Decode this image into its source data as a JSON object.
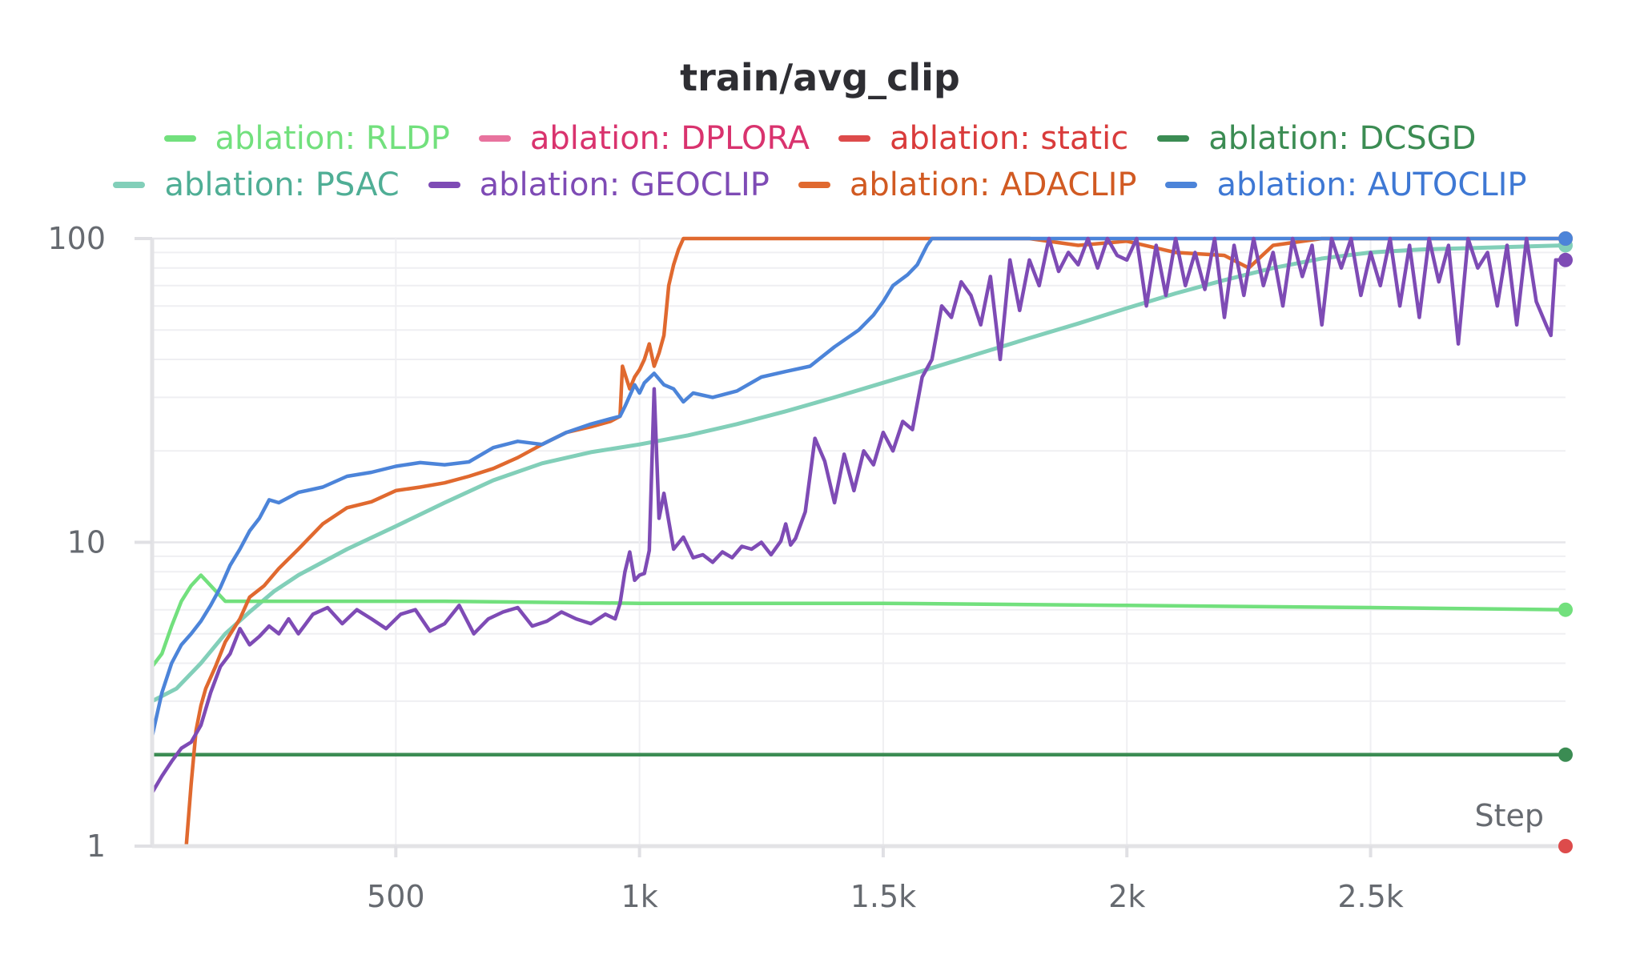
{
  "chart_data": {
    "type": "line",
    "title": "train/avg_clip",
    "xlabel": "Step",
    "ylabel": "",
    "yscale": "log",
    "ylim": [
      1,
      100
    ],
    "xlim": [
      0,
      2900
    ],
    "x_ticks": [
      500,
      1000,
      1500,
      2000,
      2500
    ],
    "x_tick_labels": [
      "500",
      "1k",
      "1.5k",
      "2k",
      "2.5k"
    ],
    "y_ticks": [
      1,
      10,
      100
    ],
    "y_tick_labels": [
      "1",
      "10",
      "100"
    ],
    "grid": true,
    "legend_position": "top",
    "series": [
      {
        "name": "ablation: RLDP",
        "color": "#72e07d",
        "x": [
          0,
          20,
          40,
          60,
          80,
          100,
          150,
          300,
          600,
          1000,
          1500,
          2000,
          2500,
          2900
        ],
        "y": [
          3.9,
          4.3,
          5.3,
          6.4,
          7.2,
          7.8,
          6.4,
          6.4,
          6.4,
          6.3,
          6.3,
          6.2,
          6.1,
          6.0
        ]
      },
      {
        "name": "ablation: DPLORA",
        "color": "#e8739e",
        "x": [],
        "y": []
      },
      {
        "name": "ablation: static",
        "color": "#dd4b4b",
        "x": [
          2900
        ],
        "y": [
          1.0
        ]
      },
      {
        "name": "ablation: DCSGD",
        "color": "#3b8c53",
        "x": [
          0,
          2900
        ],
        "y": [
          2.0,
          2.0
        ]
      },
      {
        "name": "ablation: PSAC",
        "color": "#82cfb9",
        "x": [
          0,
          50,
          100,
          150,
          200,
          250,
          300,
          400,
          500,
          600,
          700,
          800,
          900,
          1000,
          1100,
          1200,
          1300,
          1400,
          1500,
          1600,
          1700,
          1800,
          1900,
          2000,
          2100,
          2200,
          2300,
          2400,
          2500,
          2600,
          2700,
          2800,
          2900
        ],
        "y": [
          3.0,
          3.3,
          4.0,
          5.0,
          5.9,
          6.9,
          7.8,
          9.5,
          11.3,
          13.5,
          16.0,
          18.2,
          19.8,
          21.0,
          22.5,
          24.5,
          27.0,
          30.0,
          33.5,
          37.5,
          42.0,
          47.0,
          52.5,
          59.0,
          66.0,
          73.0,
          80.0,
          86.0,
          90.0,
          92.0,
          93.0,
          94.0,
          95.0
        ]
      },
      {
        "name": "ablation: GEOCLIP",
        "color": "#7e4bb5",
        "x": [
          0,
          20,
          40,
          60,
          80,
          100,
          120,
          140,
          160,
          180,
          200,
          220,
          240,
          260,
          280,
          300,
          330,
          360,
          390,
          420,
          450,
          480,
          510,
          540,
          570,
          600,
          630,
          660,
          690,
          720,
          750,
          780,
          810,
          840,
          870,
          900,
          930,
          950,
          960,
          970,
          980,
          990,
          1000,
          1010,
          1020,
          1030,
          1040,
          1050,
          1070,
          1090,
          1110,
          1130,
          1150,
          1170,
          1190,
          1210,
          1230,
          1250,
          1270,
          1290,
          1300,
          1310,
          1320,
          1340,
          1360,
          1380,
          1400,
          1420,
          1440,
          1460,
          1480,
          1500,
          1520,
          1540,
          1560,
          1580,
          1600,
          1620,
          1640,
          1660,
          1680,
          1700,
          1720,
          1740,
          1760,
          1780,
          1800,
          1820,
          1840,
          1860,
          1880,
          1900,
          1920,
          1940,
          1960,
          1980,
          2000,
          2020,
          2040,
          2060,
          2080,
          2100,
          2120,
          2140,
          2160,
          2180,
          2200,
          2220,
          2240,
          2260,
          2280,
          2300,
          2320,
          2340,
          2360,
          2380,
          2400,
          2420,
          2440,
          2460,
          2480,
          2500,
          2520,
          2540,
          2560,
          2580,
          2600,
          2620,
          2640,
          2660,
          2680,
          2700,
          2720,
          2740,
          2760,
          2780,
          2800,
          2820,
          2840,
          2860,
          2870,
          2880,
          2900
        ],
        "y": [
          1.5,
          1.7,
          1.9,
          2.1,
          2.2,
          2.5,
          3.2,
          3.9,
          4.3,
          5.2,
          4.6,
          4.9,
          5.3,
          5.0,
          5.6,
          5.0,
          5.8,
          6.1,
          5.4,
          6.0,
          5.6,
          5.2,
          5.8,
          6.0,
          5.1,
          5.4,
          6.2,
          5.0,
          5.6,
          5.9,
          6.1,
          5.3,
          5.5,
          5.9,
          5.6,
          5.4,
          5.8,
          5.6,
          6.3,
          8.0,
          9.3,
          7.5,
          7.8,
          7.9,
          9.4,
          32.0,
          12.0,
          14.5,
          9.5,
          10.4,
          8.9,
          9.1,
          8.6,
          9.3,
          8.9,
          9.7,
          9.5,
          10.0,
          9.1,
          10.1,
          11.5,
          9.8,
          10.3,
          12.6,
          22.0,
          18.5,
          13.5,
          19.5,
          14.8,
          20.0,
          18.0,
          23.0,
          20.0,
          25.0,
          23.5,
          35.0,
          40.0,
          60.0,
          55.0,
          72.0,
          65.0,
          52.0,
          75.0,
          40.0,
          85.0,
          58.0,
          85.0,
          70.0,
          100.0,
          78.0,
          90.0,
          82.0,
          100.0,
          80.0,
          100.0,
          88.0,
          85.0,
          100.0,
          60.0,
          95.0,
          65.0,
          100.0,
          70.0,
          90.0,
          68.0,
          100.0,
          55.0,
          95.0,
          65.0,
          100.0,
          70.0,
          90.0,
          60.0,
          100.0,
          75.0,
          95.0,
          52.0,
          100.0,
          80.0,
          100.0,
          65.0,
          90.0,
          70.0,
          100.0,
          60.0,
          95.0,
          55.0,
          100.0,
          72.0,
          95.0,
          45.0,
          100.0,
          80.0,
          90.0,
          60.0,
          95.0,
          52.0,
          100.0,
          62.0,
          52.0,
          48.0,
          85.0,
          85.0
        ]
      },
      {
        "name": "ablation: ADACLIP",
        "color": "#e0692f",
        "x": [
          70,
          80,
          90,
          100,
          110,
          130,
          150,
          180,
          200,
          230,
          260,
          300,
          350,
          400,
          450,
          500,
          550,
          600,
          650,
          700,
          750,
          800,
          850,
          900,
          940,
          960,
          965,
          980,
          990,
          1000,
          1010,
          1020,
          1030,
          1040,
          1050,
          1060,
          1070,
          1080,
          1090,
          1100,
          1120,
          1200,
          1300,
          1400,
          1500,
          1600,
          1700,
          1800,
          1900,
          2000,
          2100,
          2200,
          2250,
          2300,
          2400,
          2500,
          2600,
          2700,
          2800,
          2900
        ],
        "y": [
          1.0,
          1.6,
          2.4,
          2.9,
          3.3,
          3.9,
          4.7,
          5.6,
          6.6,
          7.2,
          8.2,
          9.5,
          11.5,
          13.0,
          13.6,
          14.8,
          15.2,
          15.7,
          16.5,
          17.5,
          19.0,
          21.0,
          23.0,
          24.0,
          25.0,
          26.0,
          38.0,
          32.0,
          35.0,
          37.0,
          40.0,
          45.0,
          38.0,
          42.0,
          48.0,
          70.0,
          82.0,
          92.0,
          100.0,
          100.0,
          100.0,
          100.0,
          100.0,
          100.0,
          100.0,
          100.0,
          100.0,
          100.0,
          95.0,
          98.0,
          90.0,
          88.0,
          80.0,
          95.0,
          100.0,
          100.0,
          100.0,
          100.0,
          100.0,
          100.0
        ]
      },
      {
        "name": "ablation: AUTOCLIP",
        "color": "#4c84d9",
        "x": [
          0,
          20,
          40,
          60,
          80,
          100,
          120,
          140,
          160,
          180,
          200,
          220,
          240,
          260,
          300,
          350,
          400,
          450,
          500,
          550,
          600,
          650,
          700,
          750,
          800,
          850,
          900,
          940,
          960,
          970,
          990,
          1000,
          1010,
          1030,
          1050,
          1070,
          1090,
          1110,
          1150,
          1200,
          1250,
          1300,
          1350,
          1400,
          1450,
          1480,
          1500,
          1520,
          1550,
          1570,
          1590,
          1600,
          2900
        ],
        "y": [
          2.3,
          3.2,
          4.0,
          4.6,
          5.0,
          5.5,
          6.2,
          7.1,
          8.4,
          9.5,
          10.9,
          12.0,
          13.8,
          13.5,
          14.6,
          15.2,
          16.5,
          17.0,
          17.8,
          18.3,
          18.0,
          18.4,
          20.5,
          21.5,
          21.0,
          23.0,
          24.5,
          25.5,
          26.0,
          28.0,
          33.0,
          31.0,
          33.5,
          36.0,
          33.0,
          32.0,
          29.0,
          31.0,
          30.0,
          31.5,
          35.0,
          36.5,
          38.0,
          44.0,
          50.0,
          56.0,
          62.0,
          70.0,
          76.0,
          82.0,
          95.0,
          100.0,
          100.0
        ]
      }
    ]
  }
}
